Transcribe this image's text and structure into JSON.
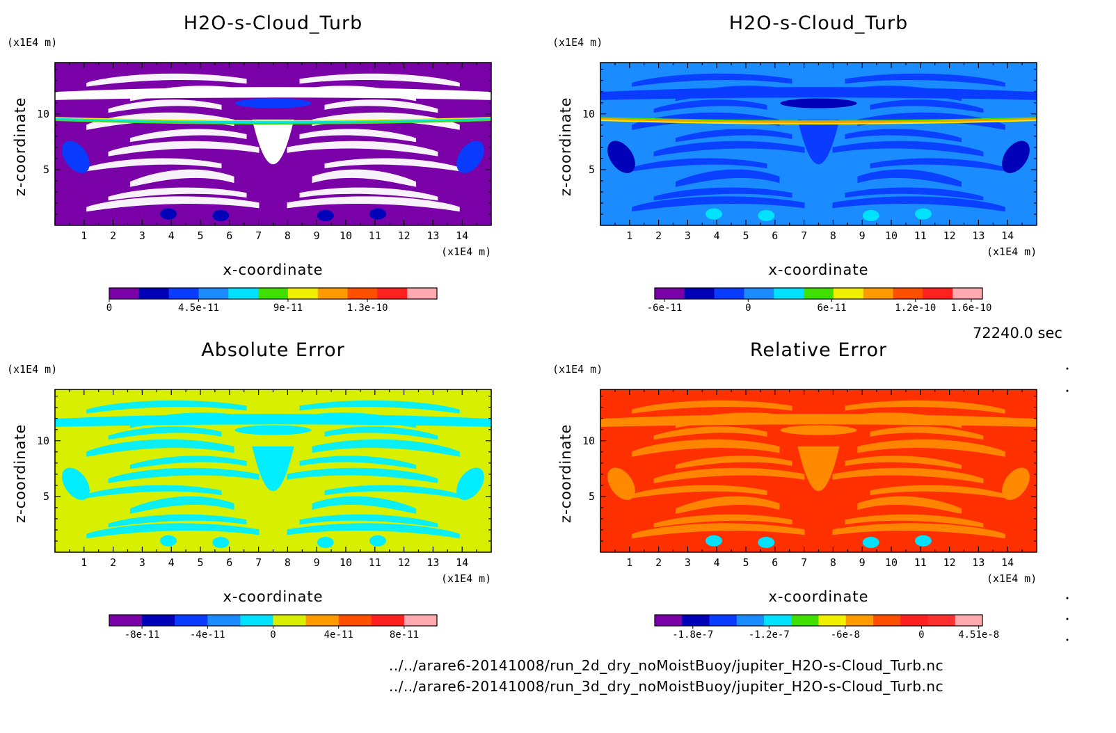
{
  "chart_data": [
    {
      "type": "heatmap",
      "title": "H2O-s-Cloud_Turb",
      "xlabel": "x-coordinate",
      "ylabel": "z-coordinate",
      "x_unit": "(x1E4 m)",
      "y_unit": "(x1E4 m)",
      "xticks": [
        "1",
        "2",
        "3",
        "4",
        "5",
        "6",
        "7",
        "8",
        "9",
        "10",
        "11",
        "12",
        "13",
        "14"
      ],
      "yticks": [
        "5",
        "10"
      ],
      "xlim": [
        0,
        15
      ],
      "ylim": [
        0,
        14.6
      ],
      "background_color": "#7a00a8",
      "pattern": "white-streaks",
      "colorbar": {
        "colors": [
          "#7a00a8",
          "#0000b8",
          "#0a3cff",
          "#1a8cff",
          "#00e0ff",
          "#40e000",
          "#f0f000",
          "#ff9a00",
          "#ff5000",
          "#ff2020",
          "#ffaab0"
        ],
        "tick_labels": [
          "0",
          "4.5e-11",
          "9e-11",
          "1.3e-10"
        ],
        "tick_values": [
          0,
          4.5e-11,
          9e-11,
          1.3e-10
        ],
        "range": [
          0,
          1.65e-10
        ]
      }
    },
    {
      "type": "heatmap",
      "title": "H2O-s-Cloud_Turb",
      "xlabel": "x-coordinate",
      "ylabel": "z-coordinate",
      "x_unit": "(x1E4 m)",
      "y_unit": "(x1E4 m)",
      "xticks": [
        "1",
        "2",
        "3",
        "4",
        "5",
        "6",
        "7",
        "8",
        "9",
        "10",
        "11",
        "12",
        "13",
        "14"
      ],
      "yticks": [
        "5",
        "10"
      ],
      "xlim": [
        0,
        15
      ],
      "ylim": [
        0,
        14.6
      ],
      "background_color": "#1a8cff",
      "pattern": "blue-streaks",
      "colorbar": {
        "colors": [
          "#7a00a8",
          "#0000b8",
          "#0a3cff",
          "#1a8cff",
          "#00e0ff",
          "#40e000",
          "#f0f000",
          "#ff9a00",
          "#ff5000",
          "#ff2020",
          "#ffaab0"
        ],
        "tick_labels": [
          "-6e-11",
          "0",
          "6e-11",
          "1.2e-10",
          "1.6e-10"
        ],
        "tick_values": [
          -6e-11,
          0,
          6e-11,
          1.2e-10,
          1.6e-10
        ],
        "range": [
          -6.7e-11,
          1.68e-10
        ]
      }
    },
    {
      "type": "heatmap",
      "title": "Absolute Error",
      "xlabel": "x-coordinate",
      "ylabel": "z-coordinate",
      "x_unit": "(x1E4 m)",
      "y_unit": "(x1E4 m)",
      "xticks": [
        "1",
        "2",
        "3",
        "4",
        "5",
        "6",
        "7",
        "8",
        "9",
        "10",
        "11",
        "12",
        "13",
        "14"
      ],
      "yticks": [
        "5",
        "10"
      ],
      "xlim": [
        0,
        15
      ],
      "ylim": [
        0,
        14.6
      ],
      "background_color": "#d8f000",
      "pattern": "cyan-streaks",
      "colorbar": {
        "colors": [
          "#7a00a8",
          "#0000b8",
          "#0a3cff",
          "#1a8cff",
          "#00e0ff",
          "#d8f000",
          "#ff9a00",
          "#ff5000",
          "#ff2020",
          "#ffaab0"
        ],
        "tick_labels": [
          "-8e-11",
          "-4e-11",
          "0",
          "4e-11",
          "8e-11"
        ],
        "tick_values": [
          -8e-11,
          -4e-11,
          0,
          4e-11,
          8e-11
        ],
        "range": [
          -1e-10,
          1e-10
        ]
      }
    },
    {
      "type": "heatmap",
      "title": "Relative Error",
      "xlabel": "x-coordinate",
      "ylabel": "z-coordinate",
      "x_unit": "(x1E4 m)",
      "y_unit": "(x1E4 m)",
      "xticks": [
        "1",
        "2",
        "3",
        "4",
        "5",
        "6",
        "7",
        "8",
        "9",
        "10",
        "11",
        "12",
        "13",
        "14"
      ],
      "yticks": [
        "5",
        "10"
      ],
      "xlim": [
        0,
        15
      ],
      "ylim": [
        0,
        14.6
      ],
      "background_color": "#ff3000",
      "pattern": "orange-streaks",
      "colorbar": {
        "colors": [
          "#7a00a8",
          "#0000b8",
          "#0a3cff",
          "#1a8cff",
          "#00e0ff",
          "#40e000",
          "#f0f000",
          "#ff9a00",
          "#ff5000",
          "#ff2020",
          "#ff3030",
          "#ffaab0"
        ],
        "tick_labels": [
          "-1.8e-7",
          "-1.2e-7",
          "-6e-8",
          "0",
          "4.51e-8"
        ],
        "tick_values": [
          -1.8e-07,
          -1.2e-07,
          -6e-08,
          0,
          4.51e-08
        ],
        "range": [
          -2.1e-07,
          4.8e-08
        ]
      }
    }
  ],
  "time_label": "72240.0 sec",
  "footer": {
    "line1": "../../arare6-20141008/run_2d_dry_noMoistBuoy/jupiter_H2O-s-Cloud_Turb.nc",
    "line2": "../../arare6-20141008/run_3d_dry_noMoistBuoy/jupiter_H2O-s-Cloud_Turb.nc"
  }
}
